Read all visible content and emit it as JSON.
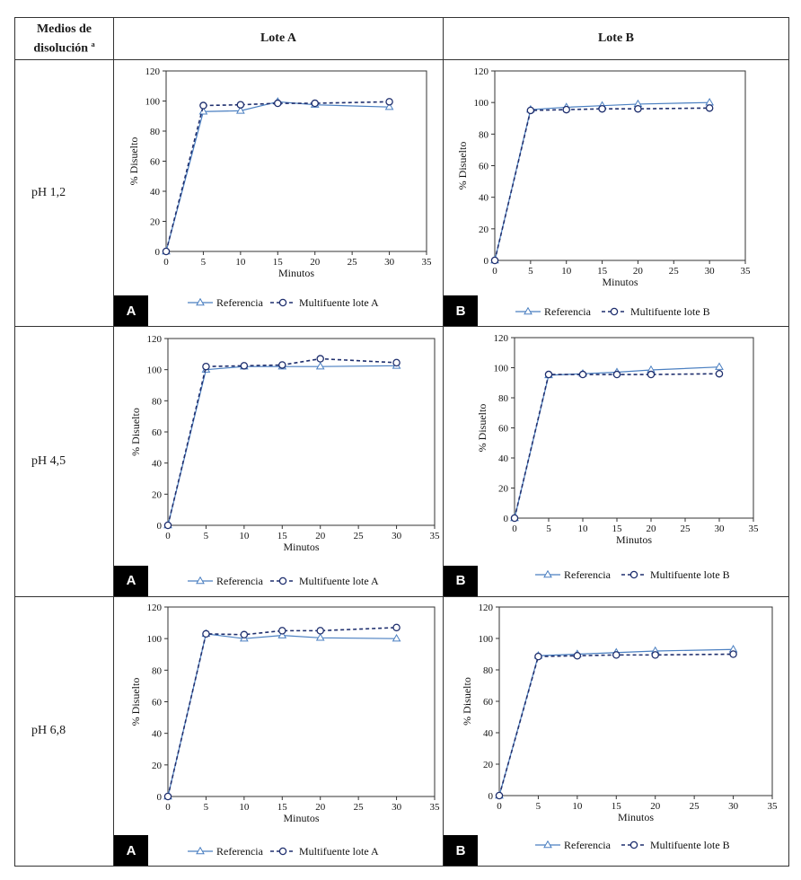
{
  "table": {
    "header": {
      "col0_line1": "Medios de",
      "col0_line2": "disolución",
      "col0_sup": "a",
      "col1": "Lote A",
      "col2": "Lote B"
    },
    "rows": [
      {
        "label": "pH 1,2"
      },
      {
        "label": "pH 4,5"
      },
      {
        "label": "pH 6,8"
      }
    ]
  },
  "colors": {
    "reference": "#4a7fc1",
    "multifuente": "#1f2f6e",
    "tag_bg": "#000000"
  },
  "chart_data": [
    {
      "type": "line",
      "panel_tag": "A",
      "xlabel": "Minutos",
      "ylabel": "% Disuelto",
      "xlim": [
        0,
        35
      ],
      "ylim": [
        0,
        120
      ],
      "xticks": [
        0,
        5,
        10,
        15,
        20,
        25,
        30,
        35
      ],
      "yticks": [
        0,
        20,
        40,
        60,
        80,
        100,
        120
      ],
      "x": [
        0,
        5,
        10,
        15,
        20,
        30
      ],
      "series": [
        {
          "name": "Referencia",
          "marker": "triangle",
          "dashed": false,
          "values": [
            0,
            93,
            93.5,
            99.5,
            97.5,
            96
          ]
        },
        {
          "name": "Multifuente lote A",
          "marker": "circle",
          "dashed": true,
          "values": [
            0,
            97,
            97.5,
            98.5,
            98.5,
            99.5
          ]
        }
      ],
      "legend": "bottom"
    },
    {
      "type": "line",
      "panel_tag": "B",
      "xlabel": "Minutos",
      "ylabel": "% Disuelto",
      "xlim": [
        0,
        35
      ],
      "ylim": [
        0,
        120
      ],
      "xticks": [
        0,
        5,
        10,
        15,
        20,
        25,
        30,
        35
      ],
      "yticks": [
        0,
        20,
        40,
        60,
        80,
        100,
        120
      ],
      "x": [
        0,
        5,
        10,
        15,
        20,
        30
      ],
      "series": [
        {
          "name": "Referencia",
          "marker": "triangle",
          "dashed": false,
          "values": [
            0,
            95.5,
            97,
            98,
            99,
            100
          ]
        },
        {
          "name": "Multifuente lote B",
          "marker": "circle",
          "dashed": true,
          "values": [
            0,
            95,
            95.5,
            96,
            96,
            96.5
          ]
        }
      ],
      "legend": "bottom"
    },
    {
      "type": "line",
      "panel_tag": "A",
      "xlabel": "Minutos",
      "ylabel": "% Disuelto",
      "xlim": [
        0,
        35
      ],
      "ylim": [
        0,
        120
      ],
      "xticks": [
        0,
        5,
        10,
        15,
        20,
        25,
        30,
        35
      ],
      "yticks": [
        0,
        20,
        40,
        60,
        80,
        100,
        120
      ],
      "x": [
        0,
        5,
        10,
        15,
        20,
        30
      ],
      "series": [
        {
          "name": "Referencia",
          "marker": "triangle",
          "dashed": false,
          "values": [
            0,
            100,
            102,
            102,
            102,
            102.5
          ]
        },
        {
          "name": "Multifuente lote A",
          "marker": "circle",
          "dashed": true,
          "values": [
            0,
            102,
            102.5,
            103,
            107,
            104.5
          ]
        }
      ],
      "legend": "bottom"
    },
    {
      "type": "line",
      "panel_tag": "B",
      "xlabel": "Minutos",
      "ylabel": "% Disuelto",
      "xlim": [
        0,
        35
      ],
      "ylim": [
        0,
        120
      ],
      "xticks": [
        0,
        5,
        10,
        15,
        20,
        25,
        30,
        35
      ],
      "yticks": [
        0,
        20,
        40,
        60,
        80,
        100,
        120
      ],
      "x": [
        0,
        5,
        10,
        15,
        20,
        30
      ],
      "series": [
        {
          "name": "Referencia",
          "marker": "triangle",
          "dashed": false,
          "values": [
            0,
            95,
            96,
            97,
            98.5,
            100.5
          ]
        },
        {
          "name": "Multifuente lote B",
          "marker": "circle",
          "dashed": true,
          "values": [
            0,
            95.5,
            95.5,
            95.5,
            95.5,
            96
          ]
        }
      ],
      "legend": "bottom"
    },
    {
      "type": "line",
      "panel_tag": "A",
      "xlabel": "Minutos",
      "ylabel": "% Disuelto",
      "xlim": [
        0,
        35
      ],
      "ylim": [
        0,
        120
      ],
      "xticks": [
        0,
        5,
        10,
        15,
        20,
        25,
        30,
        35
      ],
      "yticks": [
        0,
        20,
        40,
        60,
        80,
        100,
        120
      ],
      "x": [
        0,
        5,
        10,
        15,
        20,
        30
      ],
      "series": [
        {
          "name": "Referencia",
          "marker": "triangle",
          "dashed": false,
          "values": [
            0,
            103,
            100,
            102,
            100.5,
            100
          ]
        },
        {
          "name": "Multifuente lote A",
          "marker": "circle",
          "dashed": true,
          "values": [
            0,
            103,
            102.5,
            105,
            105,
            107
          ]
        }
      ],
      "legend": "bottom"
    },
    {
      "type": "line",
      "panel_tag": "B",
      "xlabel": "Minutos",
      "ylabel": "% Disuelto",
      "xlim": [
        0,
        35
      ],
      "ylim": [
        0,
        120
      ],
      "xticks": [
        0,
        5,
        10,
        15,
        20,
        25,
        30,
        35
      ],
      "yticks": [
        0,
        20,
        40,
        60,
        80,
        100,
        120
      ],
      "x": [
        0,
        5,
        10,
        15,
        20,
        30
      ],
      "series": [
        {
          "name": "Referencia",
          "marker": "triangle",
          "dashed": false,
          "values": [
            0,
            89,
            90,
            91,
            92,
            93
          ]
        },
        {
          "name": "Multifuente lote B",
          "marker": "circle",
          "dashed": true,
          "values": [
            0,
            88.5,
            89,
            89.5,
            89.5,
            90
          ]
        }
      ],
      "legend": "bottom"
    }
  ]
}
